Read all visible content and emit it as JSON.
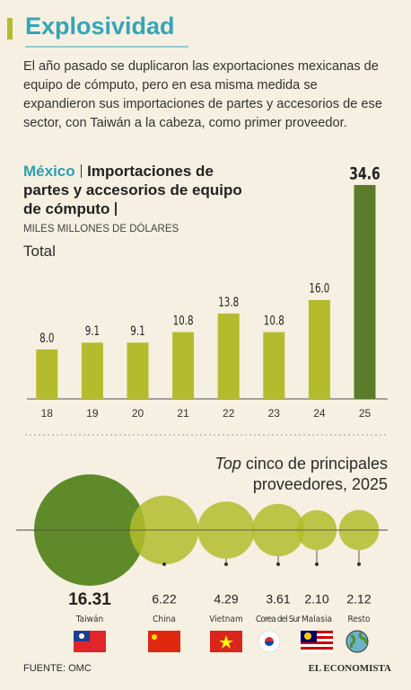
{
  "header": {
    "title": "Explosividad",
    "description": "El año pasado se duplicaron las exportaciones mexicanas de equipo de cómputo, pero en esa misma medida se expandieron sus importaciones de partes y accesorios de ese sector, con Taiwán a la cabeza, como primer proveedor."
  },
  "chart_data": [
    {
      "type": "bar",
      "title_highlight": "México",
      "title": "Importaciones de partes y accesorios de equipo de cómputo",
      "subtitle": "MILES MILLONES DE DÓLARES",
      "series_label": "Total",
      "categories": [
        "18",
        "19",
        "20",
        "21",
        "22",
        "23",
        "24",
        "25"
      ],
      "values": [
        8.0,
        9.1,
        9.1,
        10.8,
        13.8,
        10.8,
        16.0,
        34.6
      ],
      "value_labels": [
        "8.0",
        "9.1",
        "9.1",
        "10.8",
        "13.8",
        "10.8",
        "16.0",
        "34.6"
      ],
      "colors": [
        "#b4bc2d",
        "#b4bc2d",
        "#b4bc2d",
        "#b4bc2d",
        "#b4bc2d",
        "#b4bc2d",
        "#b4bc2d",
        "#5b7c2b"
      ]
    },
    {
      "type": "bubble",
      "title_emphasis": "Top",
      "title": "cinco de principales proveedores, 2025",
      "categories": [
        "Taiwán",
        "China",
        "Vietnam",
        "Corea del Sur",
        "Malasia",
        "Resto"
      ],
      "values": [
        16.31,
        6.22,
        4.29,
        3.61,
        2.1,
        2.12
      ],
      "value_labels": [
        "16.31",
        "6.22",
        "4.29",
        "3.61",
        "2.10",
        "2.12"
      ],
      "colors": [
        "#5f8a2a",
        "#b2bd2b",
        "#b2bd2b",
        "#b2bd2b",
        "#b2bd2b",
        "#b2bd2b"
      ]
    }
  ],
  "footer": {
    "source": "FUENTE: OMC",
    "brand": "EL ECONOMISTA"
  }
}
